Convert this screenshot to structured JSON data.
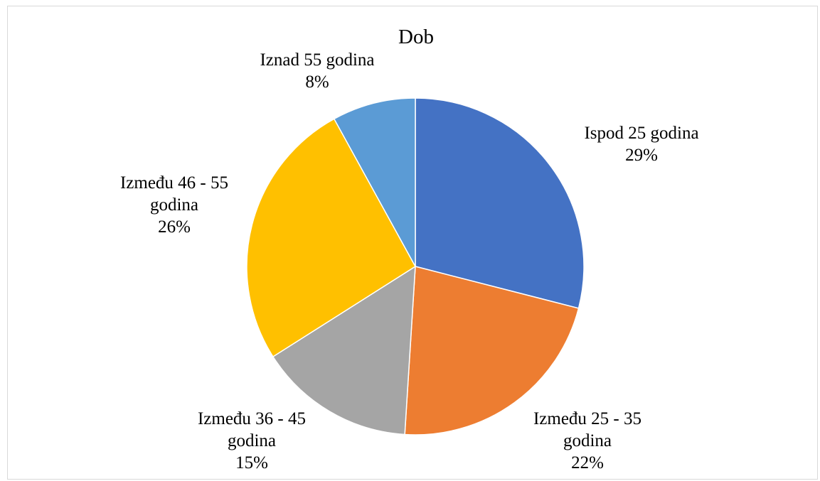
{
  "chart_data": {
    "type": "pie",
    "title": "Dob",
    "categories": [
      "Ispod 25 godina",
      "Između 25 - 35 godina",
      "Između 36 - 45 godina",
      "Između 46 - 55 godina",
      "Iznad 55 godina"
    ],
    "values": [
      29,
      22,
      15,
      26,
      8
    ],
    "value_labels": [
      "29%",
      "22%",
      "15%",
      "26%",
      "8%"
    ],
    "label_lines": [
      [
        "Ispod 25 godina",
        "29%"
      ],
      [
        "Između 25 - 35",
        "godina",
        "22%"
      ],
      [
        "Između 36 - 45",
        "godina",
        "15%"
      ],
      [
        "Između 46 - 55",
        "godina",
        "26%"
      ],
      [
        "Iznad 55 godina",
        "8%"
      ]
    ],
    "colors": [
      "#4472C4",
      "#ED7D31",
      "#A5A5A5",
      "#FFC000",
      "#5B9BD5"
    ],
    "legend": "none",
    "data_labels": "outside"
  }
}
